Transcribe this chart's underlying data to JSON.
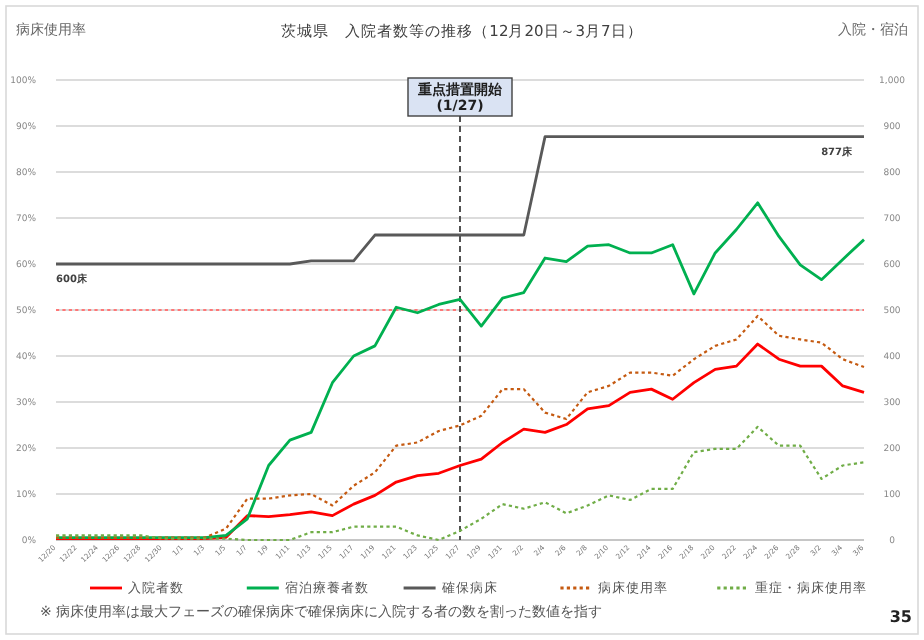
{
  "chart_data": {
    "type": "line",
    "title": "茨城県　入院者数等の推移（12月20日～3月7日）",
    "ylabel": "病床使用率",
    "y2label": "入院・宿泊",
    "categories": [
      "12/20",
      "12/22",
      "12/24",
      "12/26",
      "12/28",
      "12/30",
      "1/1",
      "1/3",
      "1/5",
      "1/7",
      "1/9",
      "1/11",
      "1/13",
      "1/15",
      "1/17",
      "1/19",
      "1/21",
      "1/23",
      "1/25",
      "1/27",
      "1/29",
      "1/31",
      "2/2",
      "2/4",
      "2/6",
      "2/8",
      "2/10",
      "2/12",
      "2/14",
      "2/16",
      "2/18",
      "2/20",
      "2/22",
      "2/24",
      "2/26",
      "2/28",
      "3/2",
      "3/4",
      "3/6"
    ],
    "series": [
      {
        "name": "入院者数",
        "color": "#ff0000",
        "axis": "y2",
        "line_style": "solid",
        "values": [
          3,
          3,
          3,
          3,
          3,
          3,
          3,
          3,
          6,
          53,
          51,
          55,
          61,
          53,
          78,
          97,
          126,
          140,
          145,
          162,
          176,
          212,
          241,
          234,
          251,
          285,
          292,
          321,
          328,
          306,
          342,
          371,
          378,
          426,
          393,
          378,
          378,
          335,
          321
        ]
      },
      {
        "name": "宿泊療養者数",
        "color": "#00b050",
        "axis": "y2",
        "line_style": "solid",
        "values": [
          5,
          5,
          5,
          5,
          5,
          5,
          5,
          5,
          10,
          46,
          162,
          217,
          234,
          342,
          400,
          422,
          506,
          494,
          512,
          523,
          465,
          526,
          538,
          613,
          605,
          639,
          642,
          624,
          624,
          642,
          535,
          624,
          675,
          733,
          660,
          598,
          566,
          610,
          653
        ]
      },
      {
        "name": "確保病床",
        "color": "#595959",
        "axis": "y2",
        "line_style": "solid",
        "values": [
          600,
          600,
          600,
          600,
          600,
          600,
          600,
          600,
          600,
          600,
          600,
          600,
          607,
          607,
          607,
          663,
          663,
          663,
          663,
          663,
          663,
          663,
          663,
          877,
          877,
          877,
          877,
          877,
          877,
          877,
          877,
          877,
          877,
          877,
          877,
          877,
          877,
          877,
          877
        ]
      },
      {
        "name": "病床使用率",
        "color": "#c55a11",
        "axis": "y",
        "line_style": "dotted",
        "values": [
          0.5,
          0.5,
          0.5,
          0.5,
          0.5,
          0.5,
          0.5,
          0.5,
          2.5,
          9,
          9,
          9.7,
          10,
          7.5,
          11.8,
          14.7,
          20.5,
          21.2,
          23.7,
          24.9,
          27,
          32.8,
          32.8,
          27.7,
          26.3,
          32.1,
          33.5,
          36.4,
          36.4,
          35.7,
          39.3,
          42.2,
          43.6,
          48.7,
          44.4,
          43.6,
          42.9,
          39.3,
          37.6
        ]
      },
      {
        "name": "重症・病床使用率",
        "color": "#70ad47",
        "axis": "y",
        "line_style": "dotted",
        "values": [
          1,
          1,
          1,
          1,
          1,
          0.3,
          0.3,
          0.3,
          0.3,
          0,
          0,
          0,
          1.7,
          1.7,
          2.9,
          2.9,
          2.9,
          1,
          0,
          2,
          4.6,
          7.8,
          6.8,
          8.2,
          5.8,
          7.5,
          9.7,
          8.7,
          11.1,
          11.1,
          19.1,
          19.8,
          19.8,
          24.6,
          20.5,
          20.5,
          13.3,
          16.2,
          16.9
        ]
      }
    ],
    "ylim": [
      0,
      100
    ],
    "yticks": [
      {
        "value": 0,
        "label": "0%"
      },
      {
        "value": 10,
        "label": "10%"
      },
      {
        "value": 20,
        "label": "20%"
      },
      {
        "value": 30,
        "label": "30%"
      },
      {
        "value": 40,
        "label": "40%"
      },
      {
        "value": 50,
        "label": "50%"
      },
      {
        "value": 60,
        "label": "60%"
      },
      {
        "value": 70,
        "label": "70%"
      },
      {
        "value": 80,
        "label": "80%"
      },
      {
        "value": 90,
        "label": "90%"
      },
      {
        "value": 100,
        "label": "100%"
      }
    ],
    "y2lim": [
      0,
      1000
    ],
    "y2ticks": [
      0,
      100,
      200,
      300,
      400,
      500,
      600,
      700,
      800,
      900,
      {
        "value": 1000,
        "label": "1,000"
      }
    ],
    "ref_lines": [
      {
        "axis": "y",
        "value": 50,
        "color": "#ff7777",
        "line_style": "dotted"
      },
      {
        "axis": "x",
        "value": "1/27",
        "label": "重点措置開始\n(1/27)",
        "color": "#404040",
        "line_style": "dashed"
      }
    ],
    "annotations": [
      {
        "text": "600床",
        "x": "12/20",
        "y": 60
      },
      {
        "text": "877床",
        "x": "3/6",
        "y": 87.7
      },
      "※ 病床使用率は最大フェーズの確保病床で確保病床に入院する者の数を割った数値を指す",
      "35"
    ],
    "grid": "y",
    "legend": "bottom"
  }
}
